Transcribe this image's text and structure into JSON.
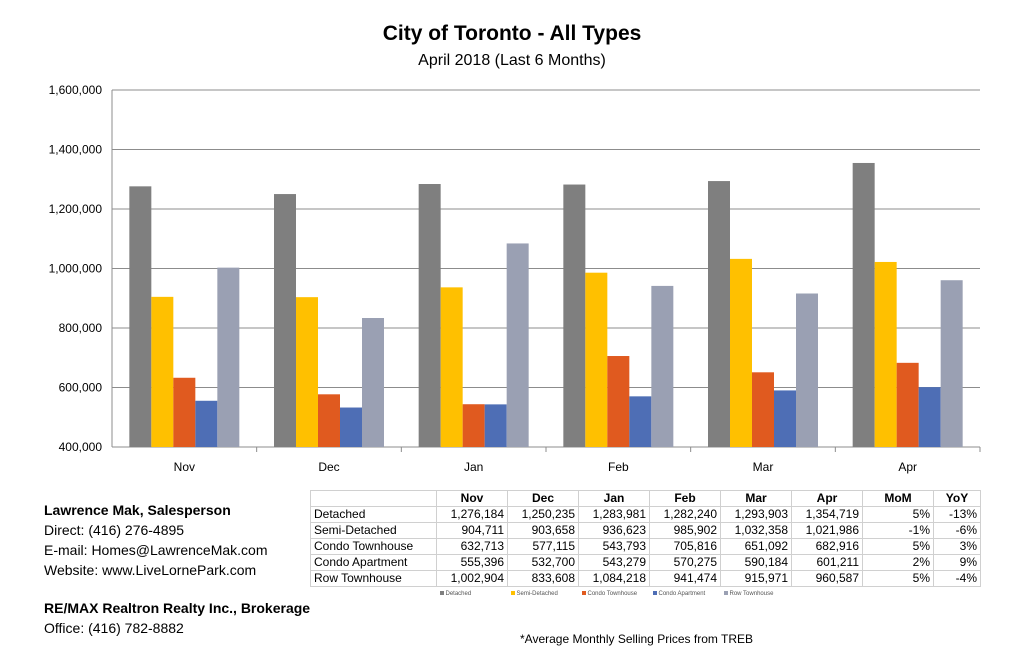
{
  "title": "City of Toronto - All Types",
  "subtitle": "April 2018 (Last 6 Months)",
  "chart_data": {
    "type": "bar",
    "categories": [
      "Nov",
      "Dec",
      "Jan",
      "Feb",
      "Mar",
      "Apr"
    ],
    "series": [
      {
        "name": "Detached",
        "color": "#7f7f7f",
        "values": [
          1276184,
          1250235,
          1283981,
          1282240,
          1293903,
          1354719
        ]
      },
      {
        "name": "Semi-Detached",
        "color": "#ffc000",
        "values": [
          904711,
          903658,
          936623,
          985902,
          1032358,
          1021986
        ]
      },
      {
        "name": "Condo Townhouse",
        "color": "#e05a1f",
        "values": [
          632713,
          577115,
          543793,
          705816,
          651092,
          682916
        ]
      },
      {
        "name": "Condo Apartment",
        "color": "#4e6eb5",
        "values": [
          555396,
          532700,
          543279,
          570275,
          590184,
          601211
        ]
      },
      {
        "name": "Row Townhouse",
        "color": "#9aa0b3",
        "values": [
          1002904,
          833608,
          1084218,
          941474,
          915971,
          960587
        ]
      }
    ],
    "ylim": [
      400000,
      1600000
    ],
    "yticks": [
      "400,000",
      "600,000",
      "800,000",
      "1,000,000",
      "1,200,000",
      "1,400,000",
      "1,600,000"
    ],
    "ytick_values": [
      400000,
      600000,
      800000,
      1000000,
      1200000,
      1400000,
      1600000
    ],
    "grid": true,
    "legend": "bottom"
  },
  "table": {
    "headers": [
      "",
      "Nov",
      "Dec",
      "Jan",
      "Feb",
      "Mar",
      "Apr",
      "MoM",
      "YoY"
    ],
    "rows": [
      [
        "Detached",
        "1,276,184",
        "1,250,235",
        "1,283,981",
        "1,282,240",
        "1,293,903",
        "1,354,719",
        "5%",
        "-13%"
      ],
      [
        "Semi-Detached",
        "904,711",
        "903,658",
        "936,623",
        "985,902",
        "1,032,358",
        "1,021,986",
        "-1%",
        "-6%"
      ],
      [
        "Condo Townhouse",
        "632,713",
        "577,115",
        "543,793",
        "705,816",
        "651,092",
        "682,916",
        "5%",
        "3%"
      ],
      [
        "Condo Apartment",
        "555,396",
        "532,700",
        "543,279",
        "570,275",
        "590,184",
        "601,211",
        "2%",
        "9%"
      ],
      [
        "Row Townhouse",
        "1,002,904",
        "833,608",
        "1,084,218",
        "941,474",
        "915,971",
        "960,587",
        "5%",
        "-4%"
      ]
    ]
  },
  "contact": {
    "name": "Lawrence Mak, Salesperson",
    "direct": "Direct:  (416) 276-4895",
    "email": "E-mail:  Homes@LawrenceMak.com",
    "website": "Website: www.LiveLornePark.com",
    "brokerage": "RE/MAX Realtron Realty Inc., Brokerage",
    "office": "Office: (416) 782-8882"
  },
  "footnote": "*Average Monthly Selling Prices  from TREB"
}
